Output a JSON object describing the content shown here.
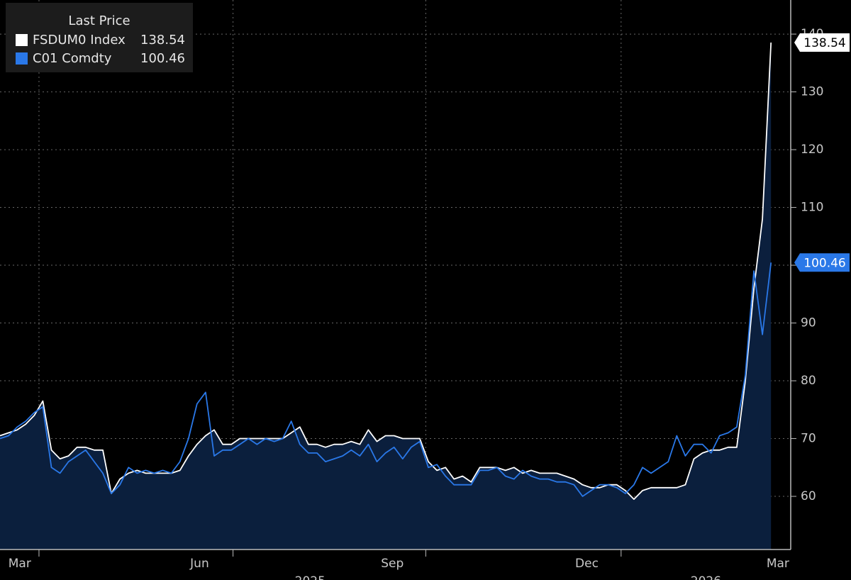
{
  "chart_data": {
    "type": "line",
    "legend_title": "Last Price",
    "xlim": [
      0,
      92.3
    ],
    "ylim": [
      50.8,
      145.9
    ],
    "yticks": [
      60,
      70,
      80,
      90,
      100,
      110,
      120,
      130,
      140
    ],
    "xticks": [
      {
        "value": 2.3,
        "label": "Mar"
      },
      {
        "value": 23.3,
        "label": "Jun"
      },
      {
        "value": 45.8,
        "label": "Sep"
      },
      {
        "value": 68.5,
        "label": "Dec"
      },
      {
        "value": 90.8,
        "label": "Mar"
      }
    ],
    "year_ticks": [
      {
        "value": 36.2,
        "label": "2025"
      },
      {
        "value": 82.4,
        "label": "2026"
      }
    ],
    "xgrid": [
      4.55,
      27.2,
      49.7,
      72.5
    ],
    "grid": true,
    "legend": "upper left",
    "area_color": "#0b1f3d",
    "series": [
      {
        "name": "FSDUM0 Index",
        "color": "#ffffff",
        "area": true,
        "values": [
          70.5,
          71,
          71.5,
          72.5,
          74,
          76.5,
          68,
          66.5,
          67,
          68.5,
          68.5,
          68,
          68,
          60.5,
          63,
          64,
          64.5,
          64,
          64,
          64,
          64,
          64.5,
          67,
          69,
          70.5,
          71.5,
          69,
          69,
          70,
          70,
          70,
          70,
          70,
          70,
          71,
          72,
          69,
          69,
          68.5,
          69,
          69,
          69.5,
          69,
          71.5,
          69.5,
          70.5,
          70.5,
          70,
          70,
          70,
          66,
          64.5,
          65,
          63,
          63.5,
          62.5,
          65,
          65,
          65,
          64.5,
          65,
          64,
          64.5,
          64,
          64,
          64,
          63.5,
          63,
          62,
          61.5,
          61.5,
          62,
          62,
          61,
          59.5,
          61,
          61.5,
          61.5,
          61.5,
          61.5,
          62,
          66.5,
          67.5,
          68,
          68,
          68.5,
          68.5,
          80,
          96,
          108,
          138.54
        ]
      },
      {
        "name": "C01 Comdty",
        "color": "#2a78e8",
        "area": false,
        "values": [
          70,
          70.5,
          72,
          73,
          74.5,
          75.5,
          65,
          64,
          66,
          67,
          68,
          66,
          64,
          60.5,
          62,
          65,
          64,
          64.5,
          64,
          64.5,
          64,
          66,
          70,
          76,
          78,
          67,
          68,
          68,
          69,
          70,
          69,
          70,
          69.5,
          70,
          73,
          69,
          67.5,
          67.5,
          66,
          66.5,
          67,
          68,
          67,
          69,
          66,
          67.5,
          68.5,
          66.5,
          68.5,
          69.5,
          65,
          65.5,
          63.5,
          62,
          62,
          62,
          64.5,
          64.5,
          65,
          63.5,
          63,
          64.5,
          63.5,
          63,
          63,
          62.5,
          62.5,
          62,
          60,
          61,
          62,
          62,
          61.5,
          60.5,
          62,
          65,
          64,
          65,
          66,
          70.5,
          67,
          69,
          69,
          67.5,
          70.5,
          71,
          72,
          81,
          99,
          88,
          100.46
        ]
      }
    ]
  }
}
